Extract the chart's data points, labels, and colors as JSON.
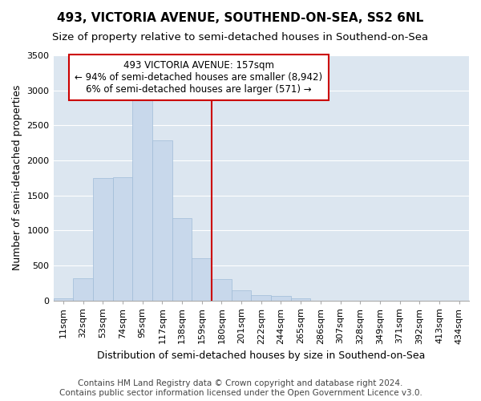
{
  "title": "493, VICTORIA AVENUE, SOUTHEND-ON-SEA, SS2 6NL",
  "subtitle": "Size of property relative to semi-detached houses in Southend-on-Sea",
  "xlabel": "Distribution of semi-detached houses by size in Southend-on-Sea",
  "ylabel": "Number of semi-detached properties",
  "footnote1": "Contains HM Land Registry data © Crown copyright and database right 2024.",
  "footnote2": "Contains public sector information licensed under the Open Government Licence v3.0.",
  "bin_labels": [
    "11sqm",
    "32sqm",
    "53sqm",
    "74sqm",
    "95sqm",
    "117sqm",
    "138sqm",
    "159sqm",
    "180sqm",
    "201sqm",
    "222sqm",
    "244sqm",
    "265sqm",
    "286sqm",
    "307sqm",
    "328sqm",
    "349sqm",
    "371sqm",
    "392sqm",
    "413sqm",
    "434sqm"
  ],
  "bar_values": [
    30,
    320,
    1750,
    1760,
    2910,
    2280,
    1170,
    600,
    300,
    145,
    75,
    60,
    30,
    0,
    0,
    0,
    0,
    0,
    0,
    0,
    0
  ],
  "bar_color": "#c8d8eb",
  "bar_edgecolor": "#a0bcd8",
  "red_line_x": 7.5,
  "red_line_label": "493 VICTORIA AVENUE: 157sqm",
  "annotation_line1": "← 94% of semi-detached houses are smaller (8,942)",
  "annotation_line2": "6% of semi-detached houses are larger (571) →",
  "annotation_box_color": "#ffffff",
  "annotation_box_edgecolor": "#cc0000",
  "vline_color": "#cc0000",
  "ylim": [
    0,
    3500
  ],
  "yticks": [
    0,
    500,
    1000,
    1500,
    2000,
    2500,
    3000,
    3500
  ],
  "plot_bg_color": "#dce6f0",
  "fig_bg_color": "#ffffff",
  "grid_color": "#ffffff",
  "title_fontsize": 11,
  "subtitle_fontsize": 9.5,
  "axis_label_fontsize": 9,
  "tick_fontsize": 8,
  "footnote_fontsize": 7.5
}
